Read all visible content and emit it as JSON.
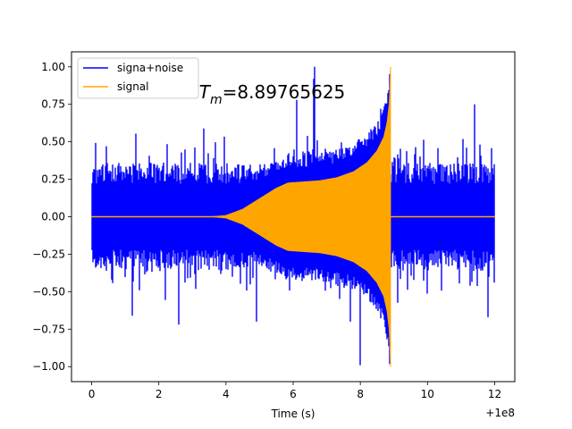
{
  "chart_data": {
    "type": "line",
    "title": "",
    "xlabel": "Time (s)",
    "ylabel": "",
    "xlim": [
      -0.6,
      12.6
    ],
    "ylim": [
      -1.1,
      1.1
    ],
    "x_ticks": [
      0,
      2,
      4,
      6,
      8,
      10,
      12
    ],
    "x_tick_labels": [
      "0",
      "2",
      "4",
      "6",
      "8",
      "10",
      "12"
    ],
    "y_ticks": [
      -1.0,
      -0.75,
      -0.5,
      -0.25,
      0.0,
      0.25,
      0.5,
      0.75,
      1.0
    ],
    "y_tick_labels": [
      "−1.00",
      "−0.75",
      "−0.50",
      "−0.25",
      "0.00",
      "0.25",
      "0.50",
      "0.75",
      "1.00"
    ],
    "x_offset_label": "+1e8",
    "grid": false,
    "legend": {
      "position": "top-left"
    },
    "annotation": {
      "base": "T",
      "sub": "m",
      "rest": "=8.89765625",
      "x": 3.2,
      "y": 0.79
    },
    "series": [
      {
        "name": "signa+noise",
        "color": "#0000ff",
        "x_range": [
          0,
          12
        ],
        "noise_band": [
          -0.4,
          0.4
        ],
        "peaks": [
          {
            "x": 6.65,
            "y": 1.0
          },
          {
            "x": 6.6,
            "y": 0.92
          },
          {
            "x": 8.0,
            "y": -0.99
          },
          {
            "x": 6.1,
            "y": 0.78
          },
          {
            "x": 8.6,
            "y": 0.72
          },
          {
            "x": 2.6,
            "y": -0.72
          },
          {
            "x": 7.7,
            "y": -0.7
          },
          {
            "x": 1.2,
            "y": -0.66
          },
          {
            "x": 11.4,
            "y": 0.75
          },
          {
            "x": 11.8,
            "y": -0.67
          },
          {
            "x": 4.9,
            "y": -0.7
          }
        ]
      },
      {
        "name": "signal",
        "color": "#ffa500",
        "x_range": [
          0,
          12
        ],
        "t_merge": 8.89765625,
        "envelope": [
          [
            3.6,
            0.0
          ],
          [
            4.0,
            0.008
          ],
          [
            4.5,
            0.05
          ],
          [
            5.0,
            0.12
          ],
          [
            5.5,
            0.19
          ],
          [
            5.85,
            0.225
          ],
          [
            6.3,
            0.232
          ],
          [
            6.8,
            0.24
          ],
          [
            7.3,
            0.26
          ],
          [
            7.8,
            0.3
          ],
          [
            8.2,
            0.36
          ],
          [
            8.5,
            0.44
          ],
          [
            8.7,
            0.53
          ],
          [
            8.8,
            0.63
          ],
          [
            8.86,
            0.75
          ],
          [
            8.89,
            0.9
          ],
          [
            8.8977,
            1.0
          ]
        ]
      }
    ]
  }
}
